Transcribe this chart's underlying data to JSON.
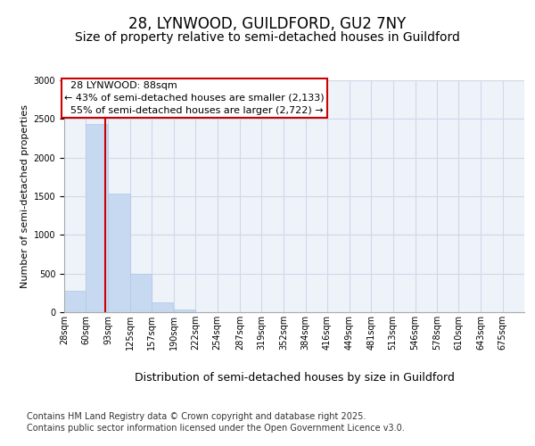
{
  "title": "28, LYNWOOD, GUILDFORD, GU2 7NY",
  "subtitle": "Size of property relative to semi-detached houses in Guildford",
  "xlabel": "Distribution of semi-detached houses by size in Guildford",
  "ylabel": "Number of semi-detached properties",
  "footnote1": "Contains HM Land Registry data © Crown copyright and database right 2025.",
  "footnote2": "Contains public sector information licensed under the Open Government Licence v3.0.",
  "bin_labels": [
    "28sqm",
    "60sqm",
    "93sqm",
    "125sqm",
    "157sqm",
    "190sqm",
    "222sqm",
    "254sqm",
    "287sqm",
    "319sqm",
    "352sqm",
    "384sqm",
    "416sqm",
    "449sqm",
    "481sqm",
    "513sqm",
    "546sqm",
    "578sqm",
    "610sqm",
    "643sqm",
    "675sqm"
  ],
  "bin_edges": [
    28,
    60,
    93,
    125,
    157,
    190,
    222,
    254,
    287,
    319,
    352,
    384,
    416,
    449,
    481,
    513,
    546,
    578,
    610,
    643,
    675
  ],
  "bar_heights": [
    280,
    2430,
    1530,
    500,
    130,
    30,
    0,
    0,
    0,
    0,
    0,
    0,
    0,
    0,
    0,
    0,
    0,
    0,
    0,
    0
  ],
  "bar_color": "#c6d9f0",
  "bar_edge_color": "#b0c8e8",
  "grid_color": "#d0d8e8",
  "property_size": 88,
  "property_label": "28 LYNWOOD: 88sqm",
  "pct_smaller": 43,
  "pct_smaller_count": 2133,
  "pct_larger": 55,
  "pct_larger_count": 2722,
  "vline_color": "#cc0000",
  "annotation_box_edge_color": "#cc0000",
  "ylim": [
    0,
    3000
  ],
  "yticks": [
    0,
    500,
    1000,
    1500,
    2000,
    2500,
    3000
  ],
  "background_color": "#eef2f9",
  "fig_background_color": "#ffffff",
  "title_fontsize": 12,
  "subtitle_fontsize": 10,
  "xlabel_fontsize": 9,
  "ylabel_fontsize": 8,
  "tick_fontsize": 7,
  "annotation_fontsize": 8,
  "footnote_fontsize": 7
}
